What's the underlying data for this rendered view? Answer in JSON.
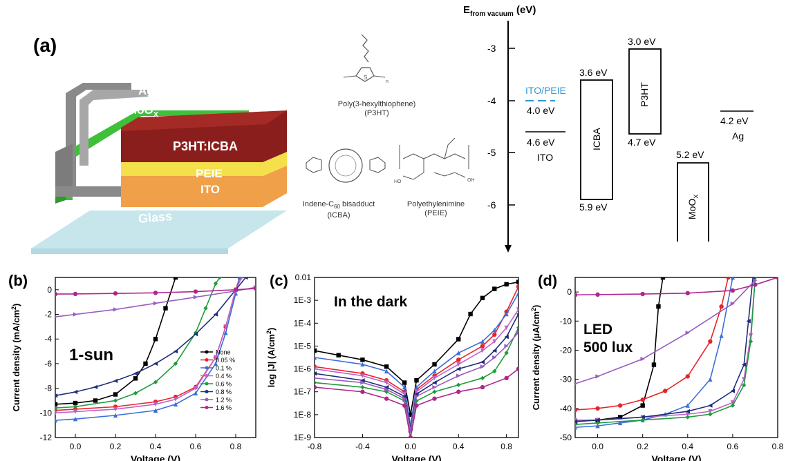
{
  "panel_a": {
    "label": "(a)",
    "layers": {
      "ag": "Ag",
      "moox": "MoO",
      "moox_sub": "X",
      "p3ht_icba": "P3HT:ICBA",
      "peie": "PEIE",
      "ito": "ITO",
      "glass": "Glass"
    },
    "molecules": {
      "p3ht_name": "Poly(3-hexylthiophene)",
      "p3ht_abbr": "(P3HT)",
      "icba_name": "Indene-C",
      "icba_sub": "60",
      "icba_name2": " bisadduct",
      "icba_abbr": "(ICBA)",
      "peie_name": "Polyethylenimine",
      "peie_abbr": "(PEIE)"
    },
    "energy": {
      "axis_title": "E",
      "axis_sub": "from vacuum",
      "axis_unit": "(eV)",
      "ticks": [
        "-3",
        "-4",
        "-5",
        "-6"
      ],
      "ito_peie": "ITO/PEIE",
      "ito_peie_val": "4.0 eV",
      "ito_val": "4.6 eV",
      "ito": "ITO",
      "icba_top": "3.6 eV",
      "icba": "ICBA",
      "icba_bot": "5.9 eV",
      "p3ht_top": "3.0 eV",
      "p3ht": "P3HT",
      "p3ht_bot": "4.7 eV",
      "moox_top": "5.2 eV",
      "moox": "MoO",
      "moox_sub": "X",
      "ag_val": "4.2 eV",
      "ag": "Ag"
    }
  },
  "colors": {
    "none": "#000000",
    "c005": "#e8232a",
    "c01": "#3a6fd8",
    "c04": "#c062c8",
    "c06": "#1e9c3c",
    "c08": "#1f2e7a",
    "c12": "#9a5cc0",
    "c16": "#b0268e",
    "ito_peie": "#2a9ad8"
  },
  "chart_data": [
    {
      "type": "line",
      "label": "(b)",
      "annotation": "1-sun",
      "xlabel": "Voltage (V)",
      "ylabel": "Current density (mA/cm",
      "ylabel_sup": "2",
      "ylabel_end": ")",
      "xlim": [
        -0.1,
        0.9
      ],
      "ylim": [
        -12,
        1
      ],
      "xticks": [
        "0.0",
        "0.2",
        "0.4",
        "0.6",
        "0.8"
      ],
      "yticks": [
        "0",
        "-2",
        "-4",
        "-6",
        "-8",
        "-10",
        "-12"
      ],
      "legend": [
        "None",
        "0.05 %",
        "0.1 %",
        "0.4 %",
        "0.6 %",
        "0.8 %",
        "1.2 %",
        "1.6 %"
      ],
      "series": [
        {
          "name": "None",
          "x": [
            -0.1,
            0,
            0.1,
            0.2,
            0.3,
            0.35,
            0.4,
            0.45,
            0.5
          ],
          "y": [
            -9.3,
            -9.2,
            -9.0,
            -8.5,
            -7.2,
            -6.0,
            -4.0,
            -1.5,
            1.0
          ]
        },
        {
          "name": "0.05 %",
          "x": [
            -0.1,
            0,
            0.2,
            0.4,
            0.5,
            0.6,
            0.7,
            0.75,
            0.8,
            0.82
          ],
          "y": [
            -9.8,
            -9.7,
            -9.5,
            -9.1,
            -8.7,
            -7.9,
            -5.5,
            -3.0,
            0.0,
            1.0
          ]
        },
        {
          "name": "0.1 %",
          "x": [
            -0.1,
            0,
            0.2,
            0.4,
            0.5,
            0.6,
            0.7,
            0.75,
            0.8,
            0.82
          ],
          "y": [
            -10.6,
            -10.5,
            -10.2,
            -9.8,
            -9.3,
            -8.4,
            -6.0,
            -3.5,
            -0.3,
            1.0
          ]
        },
        {
          "name": "0.4 %",
          "x": [
            -0.1,
            0,
            0.2,
            0.4,
            0.5,
            0.6,
            0.7,
            0.75,
            0.8,
            0.83
          ],
          "y": [
            -10.0,
            -9.9,
            -9.7,
            -9.3,
            -8.9,
            -8.0,
            -5.5,
            -3.0,
            0.0,
            1.0
          ]
        },
        {
          "name": "0.6 %",
          "x": [
            -0.1,
            0,
            0.2,
            0.3,
            0.4,
            0.5,
            0.6,
            0.65,
            0.7,
            0.72
          ],
          "y": [
            -9.6,
            -9.5,
            -9.0,
            -8.4,
            -7.5,
            -6.0,
            -3.5,
            -1.5,
            0.5,
            1.0
          ]
        },
        {
          "name": "0.8 %",
          "x": [
            -0.1,
            0,
            0.1,
            0.2,
            0.3,
            0.4,
            0.5,
            0.6,
            0.7,
            0.8,
            0.85
          ],
          "y": [
            -8.6,
            -8.3,
            -7.9,
            -7.4,
            -6.8,
            -6.0,
            -5.0,
            -3.6,
            -2.0,
            0.0,
            1.0
          ]
        },
        {
          "name": "1.2 %",
          "x": [
            -0.1,
            0,
            0.2,
            0.4,
            0.6,
            0.8,
            0.9
          ],
          "y": [
            -2.2,
            -2.0,
            -1.6,
            -1.1,
            -0.6,
            -0.1,
            0.2
          ]
        },
        {
          "name": "1.6 %",
          "x": [
            -0.1,
            0,
            0.2,
            0.4,
            0.6,
            0.8,
            0.9
          ],
          "y": [
            -0.35,
            -0.34,
            -0.3,
            -0.25,
            -0.15,
            0.0,
            0.1
          ]
        }
      ]
    },
    {
      "type": "line",
      "label": "(c)",
      "annotation": "In the dark",
      "xlabel": "Voltage (V)",
      "ylabel": "log |J| (A/cm",
      "ylabel_sup": "2",
      "ylabel_end": ")",
      "xlim": [
        -0.8,
        0.9
      ],
      "ylim": [
        -9,
        -2
      ],
      "yscale": "log",
      "xticks": [
        "-0.8",
        "-0.4",
        "0.0",
        "0.4",
        "0.8"
      ],
      "yticks": [
        "0.01",
        "1E-3",
        "1E-4",
        "1E-5",
        "1E-6",
        "1E-7",
        "1E-8",
        "1E-9"
      ],
      "series": [
        {
          "name": "None",
          "x": [
            -0.8,
            -0.6,
            -0.4,
            -0.2,
            -0.05,
            0,
            0.05,
            0.2,
            0.4,
            0.5,
            0.6,
            0.7,
            0.8,
            0.9
          ],
          "y": [
            -5.2,
            -5.4,
            -5.6,
            -5.9,
            -6.6,
            -8.0,
            -6.5,
            -5.8,
            -4.7,
            -3.6,
            -2.9,
            -2.5,
            -2.3,
            -2.2
          ]
        },
        {
          "name": "0.05 %",
          "x": [
            -0.8,
            -0.4,
            -0.2,
            -0.05,
            0,
            0.05,
            0.2,
            0.4,
            0.6,
            0.7,
            0.8,
            0.9
          ],
          "y": [
            -5.9,
            -6.2,
            -6.5,
            -7.0,
            -8.5,
            -6.9,
            -6.3,
            -5.6,
            -5.0,
            -4.5,
            -3.5,
            -2.4
          ]
        },
        {
          "name": "0.1 %",
          "x": [
            -0.8,
            -0.4,
            -0.2,
            -0.05,
            0,
            0.05,
            0.2,
            0.4,
            0.6,
            0.7,
            0.8,
            0.9
          ],
          "y": [
            -5.5,
            -5.8,
            -6.1,
            -6.8,
            -8.5,
            -6.8,
            -6.1,
            -5.3,
            -4.8,
            -4.3,
            -3.6,
            -2.7
          ]
        },
        {
          "name": "0.4 %",
          "x": [
            -0.8,
            -0.4,
            -0.2,
            -0.05,
            0,
            0.05,
            0.2,
            0.4,
            0.6,
            0.7,
            0.8,
            0.9
          ],
          "y": [
            -6.0,
            -6.3,
            -6.6,
            -7.1,
            -8.6,
            -7.0,
            -6.4,
            -5.8,
            -5.2,
            -4.8,
            -4.2,
            -3.4
          ]
        },
        {
          "name": "0.6 %",
          "x": [
            -0.8,
            -0.4,
            -0.2,
            -0.05,
            0,
            0.05,
            0.2,
            0.4,
            0.6,
            0.7,
            0.8,
            0.9
          ],
          "y": [
            -6.6,
            -6.8,
            -7.0,
            -7.4,
            -8.7,
            -7.4,
            -7.0,
            -6.7,
            -6.4,
            -6.1,
            -5.3,
            -4.2
          ]
        },
        {
          "name": "0.8 %",
          "x": [
            -0.8,
            -0.4,
            -0.2,
            -0.05,
            0,
            0.05,
            0.2,
            0.4,
            0.6,
            0.7,
            0.8,
            0.9
          ],
          "y": [
            -6.2,
            -6.5,
            -6.8,
            -7.2,
            -8.6,
            -7.1,
            -6.6,
            -6.0,
            -5.7,
            -5.2,
            -4.6,
            -3.6
          ]
        },
        {
          "name": "1.2 %",
          "x": [
            -0.8,
            -0.4,
            -0.2,
            -0.05,
            0,
            0.05,
            0.2,
            0.4,
            0.6,
            0.7,
            0.8,
            0.9
          ],
          "y": [
            -6.4,
            -6.6,
            -6.9,
            -7.3,
            -8.7,
            -7.2,
            -6.8,
            -6.3,
            -5.9,
            -5.5,
            -5.0,
            -4.4
          ]
        },
        {
          "name": "1.6 %",
          "x": [
            -0.8,
            -0.4,
            -0.2,
            -0.05,
            0,
            0.05,
            0.2,
            0.4,
            0.6,
            0.8,
            0.9
          ],
          "y": [
            -6.8,
            -7.0,
            -7.3,
            -7.6,
            -9.0,
            -7.6,
            -7.3,
            -7.0,
            -6.8,
            -6.4,
            -6.0
          ]
        }
      ]
    },
    {
      "type": "line",
      "label": "(d)",
      "annotation": "LED",
      "annotation2": "500 lux",
      "xlabel": "Voltage (V)",
      "ylabel": "Current density (µA/cm",
      "ylabel_sup": "2",
      "ylabel_end": ")",
      "xlim": [
        -0.1,
        0.8
      ],
      "ylim": [
        -50,
        5
      ],
      "xticks": [
        "0.0",
        "0.2",
        "0.4",
        "0.6",
        "0.8"
      ],
      "yticks": [
        "0",
        "-10",
        "-20",
        "-30",
        "-40",
        "-50"
      ],
      "series": [
        {
          "name": "None",
          "x": [
            -0.1,
            0,
            0.1,
            0.2,
            0.25,
            0.27,
            0.29
          ],
          "y": [
            -44.5,
            -44,
            -43,
            -39,
            -25,
            -5,
            5
          ]
        },
        {
          "name": "0.05 %",
          "x": [
            -0.1,
            0,
            0.1,
            0.2,
            0.3,
            0.4,
            0.5,
            0.55,
            0.58
          ],
          "y": [
            -40.5,
            -40,
            -39,
            -37,
            -34,
            -29,
            -17,
            -5,
            5
          ]
        },
        {
          "name": "0.1 %",
          "x": [
            -0.1,
            0,
            0.1,
            0.2,
            0.3,
            0.4,
            0.5,
            0.55,
            0.6
          ],
          "y": [
            -46.5,
            -46,
            -45,
            -44,
            -42,
            -39,
            -30,
            -15,
            5
          ]
        },
        {
          "name": "0.4 %",
          "x": [
            -0.1,
            0,
            0.2,
            0.4,
            0.5,
            0.6,
            0.65,
            0.68,
            0.7
          ],
          "y": [
            -44,
            -44,
            -43,
            -42,
            -41,
            -38,
            -30,
            -15,
            5
          ]
        },
        {
          "name": "0.6 %",
          "x": [
            -0.1,
            0,
            0.2,
            0.4,
            0.5,
            0.6,
            0.65,
            0.68,
            0.7
          ],
          "y": [
            -45.5,
            -45,
            -44,
            -43,
            -42,
            -39,
            -32,
            -17,
            5
          ]
        },
        {
          "name": "0.8 %",
          "x": [
            -0.1,
            0,
            0.2,
            0.4,
            0.5,
            0.6,
            0.65,
            0.67,
            0.69
          ],
          "y": [
            -44.5,
            -44,
            -43,
            -41,
            -39,
            -34,
            -25,
            -10,
            5
          ]
        },
        {
          "name": "1.2 %",
          "x": [
            -0.1,
            0,
            0.2,
            0.4,
            0.6,
            0.7
          ],
          "y": [
            -31.5,
            -29,
            -23,
            -14,
            -4,
            4
          ]
        },
        {
          "name": "1.6 %",
          "x": [
            -0.1,
            0,
            0.2,
            0.4,
            0.6,
            0.7,
            0.8
          ],
          "y": [
            -1.0,
            -0.9,
            -0.7,
            -0.4,
            0.5,
            2.5,
            5
          ]
        }
      ]
    }
  ]
}
